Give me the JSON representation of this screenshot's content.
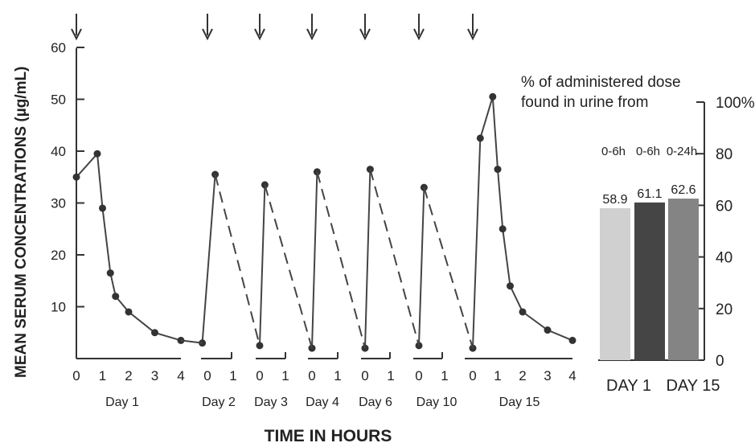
{
  "chart_data": [
    {
      "type": "line",
      "title": "",
      "ylabel": "MEAN SERUM CONCENTRATIONS (µg/mL)",
      "xlabel": "TIME IN HOURS",
      "ylim": [
        0,
        60
      ],
      "yticks": [
        10,
        20,
        30,
        40,
        50,
        60
      ],
      "panels": [
        {
          "label": "Day 1",
          "ticks": [
            "0",
            "1",
            "2",
            "3",
            "4"
          ],
          "points": [
            [
              0,
              35
            ],
            [
              0.8,
              39.5
            ],
            [
              1,
              29
            ],
            [
              1.3,
              16.5
            ],
            [
              1.5,
              12
            ],
            [
              2,
              9
            ],
            [
              3,
              5
            ],
            [
              4,
              3.5
            ]
          ],
          "dashed_to_next": false
        },
        {
          "label": "Day 2",
          "ticks": [
            "0",
            "1"
          ],
          "points": [
            [
              -0.2,
              3
            ],
            [
              0.3,
              35.5
            ]
          ],
          "dashed_to_next": true
        },
        {
          "label": "Day 3",
          "ticks": [
            "0",
            "1"
          ],
          "points": [
            [
              0,
              2.5
            ],
            [
              0.2,
              33.5
            ]
          ],
          "dashed_to_next": true
        },
        {
          "label": "Day 4",
          "ticks": [
            "0",
            "1"
          ],
          "points": [
            [
              0,
              2
            ],
            [
              0.2,
              36
            ]
          ],
          "dashed_to_next": true
        },
        {
          "label": "Day 6",
          "ticks": [
            "0",
            "1"
          ],
          "points": [
            [
              0,
              2
            ],
            [
              0.2,
              36.5
            ]
          ],
          "dashed_to_next": true
        },
        {
          "label": "Day 10",
          "ticks": [
            "0",
            "1"
          ],
          "points": [
            [
              0,
              2.5
            ],
            [
              0.2,
              33
            ]
          ],
          "dashed_to_next": true
        },
        {
          "label": "Day 15",
          "ticks": [
            "0",
            "1",
            "2",
            "3",
            "4"
          ],
          "points": [
            [
              0,
              2
            ],
            [
              0.3,
              42.5
            ],
            [
              0.8,
              50.5
            ],
            [
              1,
              36.5
            ],
            [
              1.2,
              25
            ],
            [
              1.5,
              14
            ],
            [
              2,
              9
            ],
            [
              3,
              5.5
            ],
            [
              4,
              3.5
            ]
          ],
          "dashed_to_next": false
        }
      ],
      "dose_arrows": [
        "Day 1",
        "Day 2",
        "Day 3",
        "Day 4",
        "Day 6",
        "Day 10",
        "Day 15"
      ]
    },
    {
      "type": "bar",
      "title": "% of administered dose found in urine from",
      "title_lines": [
        "% of administered dose",
        "found in urine from"
      ],
      "categories": [
        "0-6h",
        "0-6h",
        "0-24h"
      ],
      "values": [
        58.9,
        61.1,
        62.6
      ],
      "value_labels": [
        "58.9",
        "61.1",
        "62.6"
      ],
      "colors": [
        "#d0d0d0",
        "#454545",
        "#848484"
      ],
      "ylim": [
        0,
        100
      ],
      "yticks": [
        "0",
        "20",
        "40",
        "60",
        "80",
        "100%"
      ],
      "group_labels": [
        "DAY 1",
        "DAY 15"
      ]
    }
  ]
}
